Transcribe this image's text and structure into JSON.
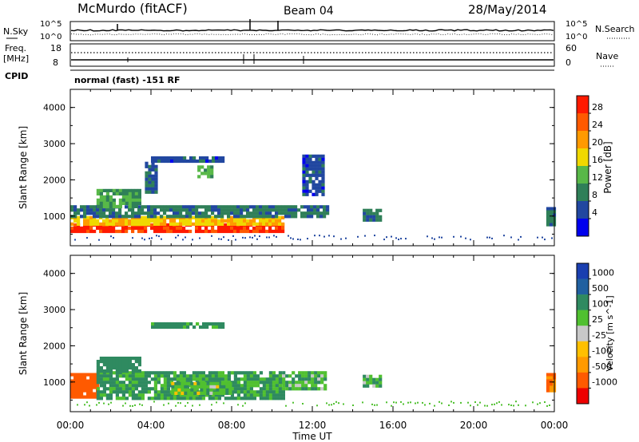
{
  "header": {
    "station": "McMurdo (fitACF)",
    "beam": "Beam 04",
    "date": "28/May/2014"
  },
  "strips": {
    "nsky_label": "N.Sky",
    "nsky_ticks": [
      "10^5",
      "10^0"
    ],
    "nsearch_label": "N.Search",
    "nsearch_ticks": [
      "10^5",
      "10^0"
    ],
    "freq_label": "Freq.",
    "freq_unit": "[MHz]",
    "freq_ticks": [
      "18",
      "8"
    ],
    "nave_label": "Nave",
    "nave_ticks": [
      "60",
      "0"
    ],
    "cpid_label": "CPID",
    "cpid_text": "normal (fast) -151 RF"
  },
  "colors": {
    "power_scale": [
      "#0000ee",
      "#2147a0",
      "#2f7f58",
      "#58b848",
      "#f0d800",
      "#ff9a00",
      "#ff5a00",
      "#ff1a00"
    ],
    "velocity_scale": [
      "#ee0000",
      "#ff5a00",
      "#ff9a00",
      "#ffc000",
      "#c8c8c8",
      "#50c030",
      "#2f8a60",
      "#2060a0",
      "#1a3fb0"
    ]
  },
  "chart_data": [
    {
      "type": "heatmap",
      "panel": "power",
      "ylabel": "Slant Range [km]",
      "yticks": [
        "4000",
        "3000",
        "2000",
        "1000"
      ],
      "ylim": [
        180,
        4500
      ],
      "xlim": [
        0,
        24
      ],
      "colorbar_label": "Power [dB]",
      "colorbar_ticks": [
        "28",
        "24",
        "20",
        "16",
        "12",
        "8",
        "4"
      ],
      "colorbar_range": [
        0,
        32
      ],
      "echo_regions": [
        {
          "t0": 0.0,
          "t1": 10.5,
          "r0": 550,
          "r1": 800,
          "value": 29
        },
        {
          "t0": 0.0,
          "t1": 10.5,
          "r0": 800,
          "r1": 1000,
          "value": 19
        },
        {
          "t0": 0.0,
          "t1": 12.7,
          "r0": 1000,
          "r1": 1300,
          "value": 9
        },
        {
          "t0": 1.3,
          "t1": 3.5,
          "r0": 1300,
          "r1": 1750,
          "value": 12
        },
        {
          "t0": 3.7,
          "t1": 4.3,
          "r0": 1700,
          "r1": 2500,
          "value": 7
        },
        {
          "t0": 4.0,
          "t1": 7.5,
          "r0": 2500,
          "r1": 2650,
          "value": 6
        },
        {
          "t0": 6.3,
          "t1": 7.0,
          "r0": 2100,
          "r1": 2400,
          "value": 13
        },
        {
          "t0": 11.5,
          "t1": 12.5,
          "r0": 1600,
          "r1": 2700,
          "value": 6
        },
        {
          "t0": 14.5,
          "t1": 15.3,
          "r0": 850,
          "r1": 1200,
          "value": 9
        },
        {
          "t0": 23.6,
          "t1": 24.0,
          "r0": 800,
          "r1": 1250,
          "value": 9
        }
      ]
    },
    {
      "type": "heatmap",
      "panel": "velocity",
      "ylabel": "Slant Range [km]",
      "yticks": [
        "4000",
        "3000",
        "2000",
        "1000"
      ],
      "ylim": [
        180,
        4500
      ],
      "xlim": [
        0,
        24
      ],
      "xlabel": "Time UT",
      "xticks": [
        "00:00",
        "04:00",
        "08:00",
        "12:00",
        "16:00",
        "20:00",
        "00:00"
      ],
      "colorbar_label": "Velocity [m s^-1]",
      "colorbar_ticks": [
        "1000",
        "500",
        "100",
        "25",
        "-25",
        "-100",
        "-500",
        "-1000"
      ],
      "echo_regions": [
        {
          "t0": 0.0,
          "t1": 1.3,
          "r0": 600,
          "r1": 1250,
          "value": -300
        },
        {
          "t0": 1.3,
          "t1": 10.5,
          "r0": 550,
          "r1": 1300,
          "value": 120
        },
        {
          "t0": 5.0,
          "t1": 8.0,
          "r0": 650,
          "r1": 1000,
          "value": 60
        },
        {
          "t0": 10.5,
          "t1": 12.7,
          "r0": 800,
          "r1": 1300,
          "value": 80
        },
        {
          "t0": 1.3,
          "t1": 3.5,
          "r0": 1300,
          "r1": 1700,
          "value": 200
        },
        {
          "t0": 4.0,
          "t1": 7.5,
          "r0": 2500,
          "r1": 2650,
          "value": 150
        },
        {
          "t0": 14.5,
          "t1": 15.3,
          "r0": 850,
          "r1": 1200,
          "value": 90
        },
        {
          "t0": 23.6,
          "t1": 24.0,
          "r0": 800,
          "r1": 1250,
          "value": -150
        }
      ]
    }
  ]
}
